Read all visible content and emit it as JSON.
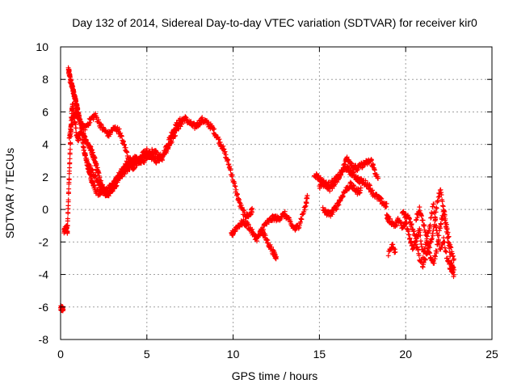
{
  "chart_data": {
    "type": "scatter",
    "title": "Day 132 of 2014, Sidereal Day-to-day VTEC variation (SDTVAR) for receiver kir0",
    "xlabel": "GPS time / hours",
    "ylabel": "SDTVAR / TECUs",
    "xlim": [
      0,
      25
    ],
    "ylim": [
      -8,
      10
    ],
    "xticks": [
      "0",
      "5",
      "10",
      "15",
      "20",
      "25"
    ],
    "yticks": [
      "-8",
      "-6",
      "-4",
      "-2",
      "0",
      "2",
      "4",
      "6",
      "8",
      "10"
    ],
    "grid": true,
    "marker": "plus",
    "color": "#ff0000",
    "series": [
      {
        "name": "SDTVAR",
        "tracks": [
          {
            "x": [
              0.0,
              0.05,
              0.1,
              0.15
            ],
            "y": [
              -6.1,
              -6.1,
              -6.1,
              -6.1
            ]
          },
          {
            "x": [
              0.2,
              0.25,
              0.3,
              0.35,
              0.4
            ],
            "y": [
              -1.4,
              -1.2,
              -1.3,
              -1.0,
              -1.5
            ]
          },
          {
            "x": [
              0.4,
              0.45,
              0.5,
              0.55,
              0.6,
              0.65,
              0.7,
              0.8,
              0.9,
              1.0,
              1.1,
              1.2,
              1.3,
              1.4,
              1.5,
              1.6,
              1.7,
              1.8,
              1.9,
              2.0,
              2.2,
              2.4,
              2.6,
              2.8,
              3.0,
              3.2,
              3.4,
              3.6,
              3.8,
              4.0,
              4.2,
              4.4,
              4.6,
              4.8,
              5.0,
              5.2,
              5.4,
              5.6,
              5.8,
              6.0,
              6.2,
              6.4,
              6.6,
              6.8,
              7.0,
              7.2,
              7.4,
              7.6,
              7.8,
              8.0,
              8.2,
              8.4,
              8.6,
              8.8,
              9.0,
              9.2,
              9.4,
              9.6,
              9.8,
              10.0,
              10.2,
              10.4,
              10.6,
              10.8,
              11.0,
              11.1
            ],
            "y": [
              -1.0,
              0.5,
              2.0,
              3.5,
              5.0,
              6.0,
              6.5,
              5.5,
              4.8,
              4.2,
              4.6,
              5.0,
              4.0,
              3.5,
              3.0,
              2.5,
              2.2,
              1.8,
              1.5,
              1.2,
              1.0,
              1.0,
              1.1,
              1.3,
              1.5,
              1.8,
              2.0,
              2.2,
              2.4,
              2.6,
              2.8,
              3.0,
              3.0,
              3.2,
              3.4,
              3.3,
              3.1,
              3.0,
              3.2,
              3.5,
              4.0,
              4.6,
              5.0,
              5.3,
              5.5,
              5.6,
              5.4,
              5.2,
              5.1,
              5.3,
              5.5,
              5.4,
              5.2,
              5.0,
              4.6,
              4.2,
              3.8,
              3.2,
              2.6,
              1.8,
              1.0,
              0.3,
              -0.2,
              -0.4,
              -0.3,
              0.0
            ]
          },
          {
            "x": [
              0.45,
              0.5,
              0.55,
              0.6,
              0.65,
              0.7,
              0.75,
              0.8,
              0.85,
              0.9,
              0.95,
              1.0,
              1.05,
              1.1,
              1.2,
              1.3,
              1.4,
              1.5,
              1.6,
              1.7,
              1.8,
              1.9,
              2.0,
              2.1,
              2.2,
              2.3,
              2.4,
              2.5,
              2.6,
              2.7,
              2.8,
              3.0,
              3.2,
              3.4,
              3.6,
              3.8,
              4.0,
              4.2,
              4.4
            ],
            "y": [
              8.6,
              8.4,
              8.0,
              7.8,
              7.6,
              7.4,
              7.2,
              7.0,
              6.8,
              6.5,
              6.3,
              6.0,
              5.8,
              5.5,
              5.2,
              4.8,
              4.4,
              4.2,
              4.0,
              3.8,
              3.6,
              3.3,
              3.0,
              2.6,
              2.2,
              1.8,
              1.5,
              1.2,
              1.0,
              0.9,
              1.0,
              1.2,
              1.5,
              2.0,
              2.4,
              2.8,
              3.0,
              3.1,
              3.2
            ]
          },
          {
            "x": [
              0.5,
              0.6,
              0.7,
              0.8,
              0.9,
              1.0,
              1.2,
              1.4,
              1.6,
              1.8,
              2.0,
              2.2,
              2.4,
              2.6,
              2.8,
              3.0,
              3.2,
              3.4,
              3.6,
              3.8,
              4.0,
              4.2,
              4.4,
              4.6,
              4.8,
              5.0
            ],
            "y": [
              4.5,
              5.0,
              5.5,
              5.8,
              6.0,
              5.6,
              5.2,
              5.0,
              5.3,
              5.6,
              5.8,
              5.4,
              5.0,
              4.8,
              4.6,
              4.9,
              5.0,
              4.8,
              4.2,
              3.6,
              3.0,
              2.6,
              2.8,
              3.2,
              3.4,
              3.6
            ]
          },
          {
            "x": [
              1.5,
              1.7,
              1.9,
              2.1,
              2.3,
              2.5,
              2.7,
              2.9,
              3.1,
              3.3,
              3.5,
              3.7,
              3.9,
              4.1,
              4.3,
              4.5,
              4.7,
              4.9,
              5.1,
              5.3,
              5.5,
              5.7,
              5.9,
              6.1,
              6.3,
              6.5,
              6.7,
              6.9,
              7.1
            ],
            "y": [
              3.0,
              2.6,
              2.2,
              1.8,
              1.4,
              1.2,
              1.0,
              1.2,
              1.6,
              2.0,
              2.3,
              2.6,
              2.8,
              3.0,
              3.1,
              3.0,
              2.9,
              3.1,
              3.4,
              3.6,
              3.5,
              3.3,
              3.2,
              3.6,
              4.0,
              4.4,
              4.8,
              5.2,
              5.4
            ]
          },
          {
            "x": [
              9.9,
              10.0,
              10.2,
              10.4,
              10.6,
              10.8,
              11.0,
              11.2,
              11.4,
              11.6,
              11.8,
              12.0,
              12.2,
              12.4,
              12.6,
              12.8,
              13.0,
              13.2,
              13.4,
              13.6,
              13.8,
              14.0,
              14.2,
              14.3
            ],
            "y": [
              -1.6,
              -1.4,
              -1.1,
              -0.9,
              -0.8,
              -0.9,
              -1.2,
              -1.6,
              -1.8,
              -1.4,
              -1.0,
              -0.8,
              -0.6,
              -0.5,
              -0.6,
              -0.4,
              -0.3,
              -0.6,
              -1.0,
              -1.2,
              -1.0,
              -0.4,
              0.2,
              0.8
            ]
          },
          {
            "x": [
              11.6,
              11.8,
              12.0,
              12.2,
              12.4,
              12.5
            ],
            "y": [
              -1.2,
              -1.6,
              -2.0,
              -2.4,
              -2.8,
              -3.0
            ]
          },
          {
            "x": [
              14.7,
              14.9,
              15.1,
              15.3,
              15.5,
              15.7,
              15.9,
              16.1,
              16.3,
              16.5,
              16.7,
              16.9,
              17.1,
              17.3,
              17.5,
              17.7,
              17.9,
              18.1,
              18.3,
              18.5,
              18.7,
              18.9
            ],
            "y": [
              2.2,
              2.0,
              1.8,
              1.6,
              1.5,
              1.6,
              1.8,
              2.0,
              2.3,
              2.6,
              2.4,
              2.2,
              2.0,
              1.8,
              1.7,
              1.6,
              1.4,
              1.0,
              0.8,
              0.6,
              0.4,
              0.2
            ]
          },
          {
            "x": [
              15.0,
              15.2,
              15.4,
              15.6,
              15.8,
              16.0,
              16.2,
              16.4,
              16.6,
              16.8,
              17.0,
              17.2,
              17.4,
              17.6,
              17.8,
              18.0,
              18.2,
              18.4
            ],
            "y": [
              1.4,
              1.6,
              1.5,
              1.3,
              1.5,
              1.8,
              2.2,
              2.6,
              3.2,
              2.9,
              2.6,
              2.5,
              2.7,
              2.8,
              2.9,
              3.0,
              2.4,
              1.8
            ]
          },
          {
            "x": [
              15.2,
              15.4,
              15.6,
              15.8,
              16.0,
              16.2,
              16.4,
              16.6,
              16.8,
              17.0,
              17.2,
              17.4
            ],
            "y": [
              0.0,
              -0.2,
              -0.3,
              -0.1,
              0.2,
              0.6,
              1.0,
              1.3,
              1.5,
              1.3,
              1.1,
              1.2
            ]
          },
          {
            "x": [
              18.9,
              19.0,
              19.2,
              19.4,
              19.6,
              19.8,
              20.0,
              20.2,
              20.4,
              20.6,
              20.8,
              21.0,
              21.2,
              21.4,
              21.6,
              21.8,
              22.0,
              22.2,
              22.4,
              22.6,
              22.8
            ],
            "y": [
              -0.4,
              -0.6,
              -0.8,
              -1.0,
              -0.6,
              -1.2,
              -0.8,
              -1.6,
              -2.4,
              -1.8,
              -1.2,
              -2.8,
              -2.0,
              -1.0,
              0.4,
              -1.4,
              -2.6,
              -1.8,
              -3.0,
              -3.6,
              -4.0
            ]
          },
          {
            "x": [
              19.8,
              20.0,
              20.2,
              20.4,
              20.6,
              20.8,
              21.0,
              21.2,
              21.4,
              21.6,
              21.8,
              22.0,
              22.2,
              22.4,
              22.6,
              22.8
            ],
            "y": [
              -0.2,
              -0.4,
              -0.6,
              -1.2,
              -2.0,
              -3.0,
              -3.4,
              -2.8,
              -2.2,
              -1.4,
              0.2,
              1.2,
              0.0,
              -1.2,
              -2.4,
              -3.2
            ]
          },
          {
            "x": [
              20.6,
              20.8,
              21.0,
              21.2,
              21.4,
              21.6,
              21.8,
              22.0,
              22.2,
              22.4,
              22.6,
              22.8
            ],
            "y": [
              -0.6,
              0.0,
              -0.8,
              -1.6,
              -2.8,
              -3.4,
              -2.4,
              -1.0,
              -0.2,
              -1.4,
              -3.2,
              -3.8
            ]
          },
          {
            "x": [
              19.0,
              19.2,
              19.4
            ],
            "y": [
              -2.8,
              -2.2,
              -2.6
            ]
          }
        ]
      }
    ]
  }
}
